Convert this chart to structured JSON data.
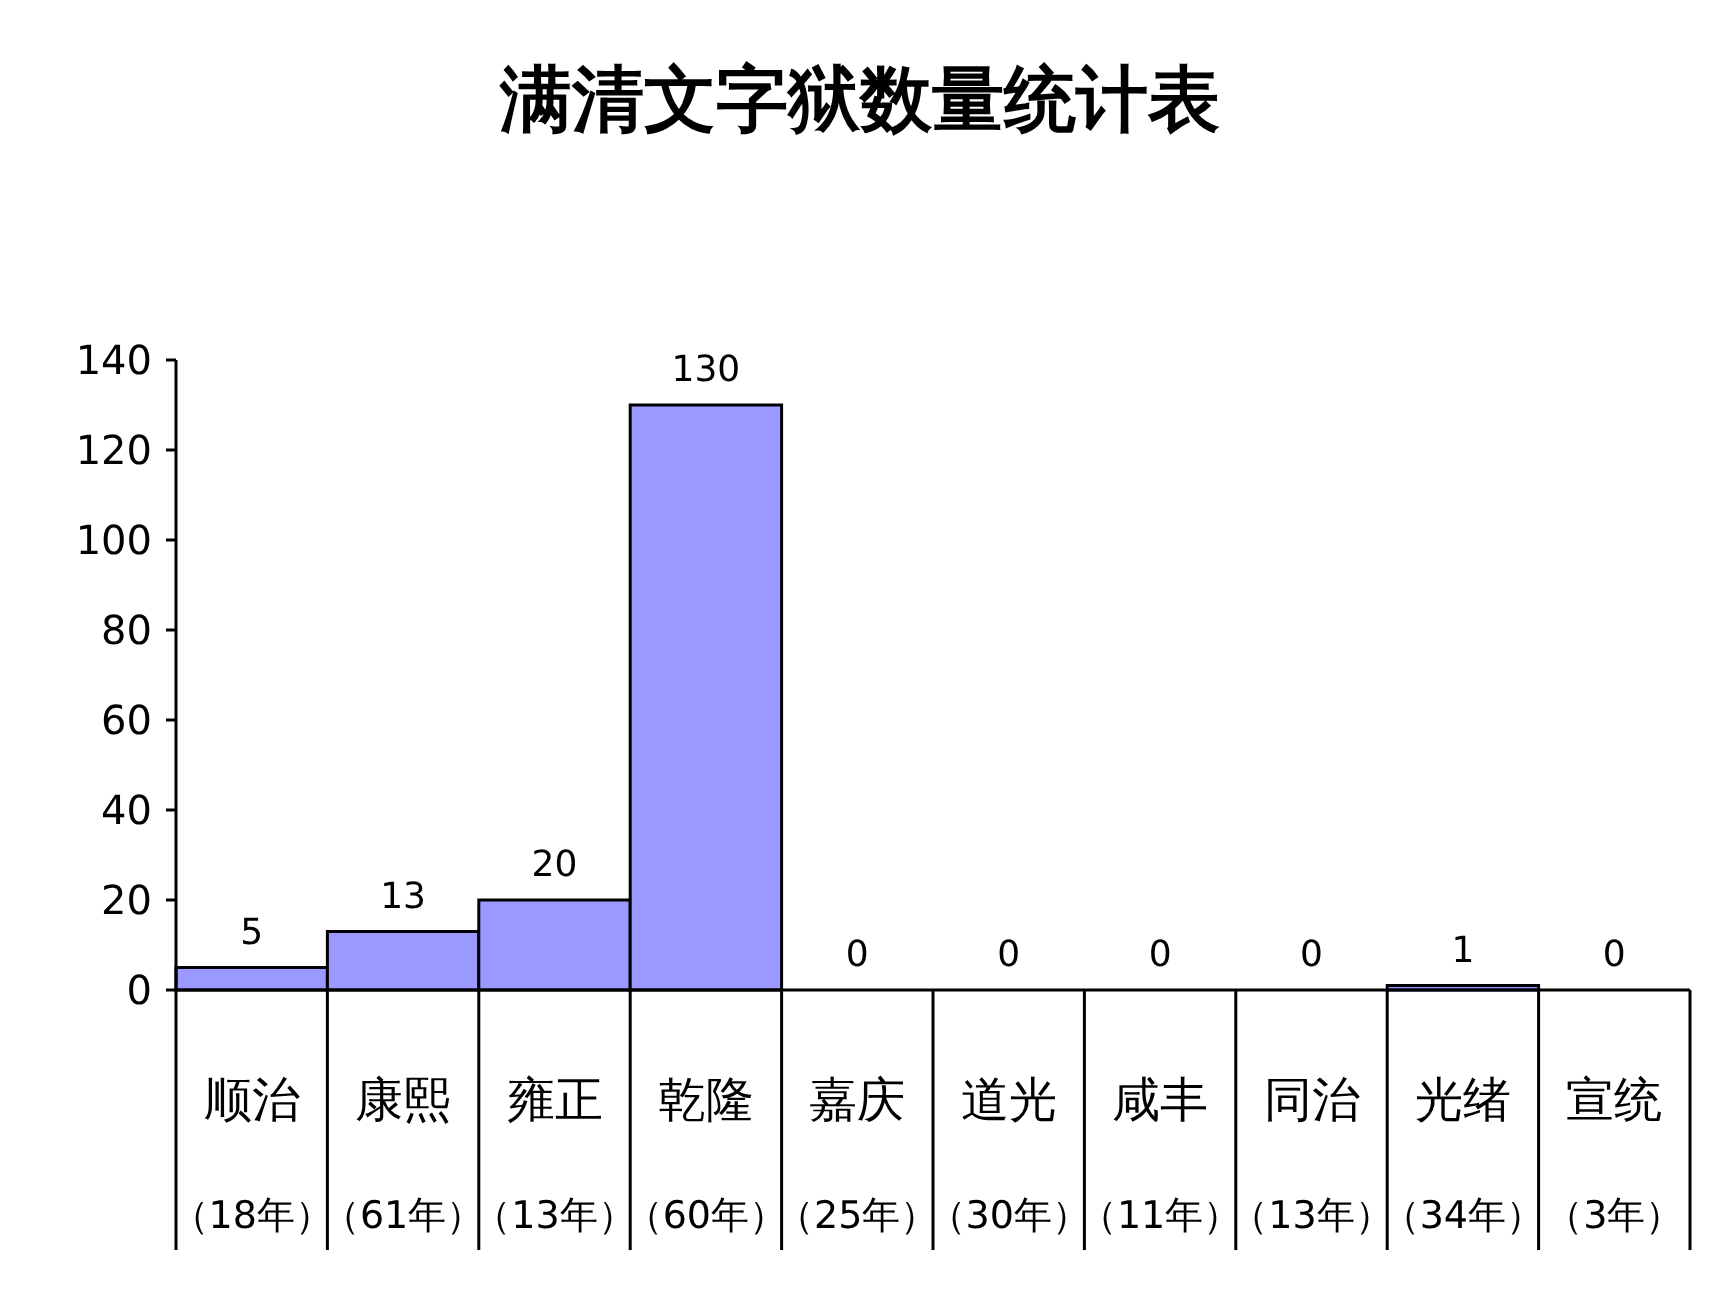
{
  "chart_data": {
    "type": "bar",
    "title": "满清文字狱数量统计表",
    "categories": [
      "顺治（18年）",
      "康熙（61年）",
      "雍正（13年）",
      "乾隆（60年）",
      "嘉庆（25年）",
      "道光（30年）",
      "咸丰（11年）",
      "同治（13年）",
      "光绪（34年）",
      "宣统（3年）"
    ],
    "values": [
      5,
      13,
      20,
      130,
      0,
      0,
      0,
      0,
      1,
      0
    ],
    "color": "#9999ff",
    "ylim": [
      0,
      140
    ],
    "yticks": [
      0,
      20,
      40,
      60,
      80,
      100,
      120,
      140
    ],
    "data_labels": true
  }
}
